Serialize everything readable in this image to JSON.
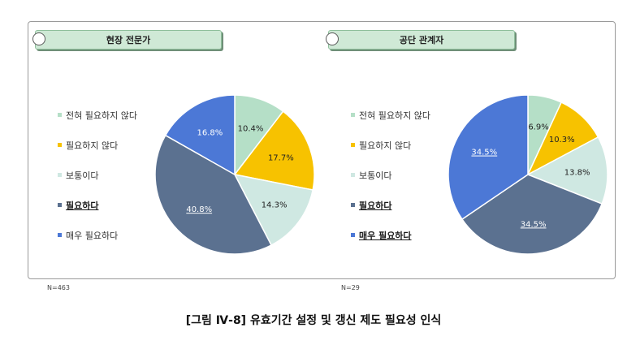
{
  "caption": "[그림 Ⅳ-8] 유효기간 설정 및 갱신 제도 필요성 인식",
  "colors": {
    "not_at_all": "#b5dfc7",
    "not_needed": "#f7c200",
    "neutral": "#cfe8e2",
    "needed": "#5b7190",
    "very_needed": "#4c78d6"
  },
  "chart_data": [
    {
      "type": "pie",
      "title": "현장 전문가",
      "n_label": "N=463",
      "slices": [
        {
          "label": "전혀 필요하지 않다",
          "value": 10.4,
          "value_label": "10.4%",
          "color": "#b5dfc7",
          "emph": false
        },
        {
          "label": "필요하지 않다",
          "value": 17.7,
          "value_label": "17.7%",
          "color": "#f7c200",
          "emph": false
        },
        {
          "label": "보통이다",
          "value": 14.3,
          "value_label": "14.3%",
          "color": "#cfe8e2",
          "emph": false
        },
        {
          "label": "필요하다",
          "value": 40.8,
          "value_label": "40.8%",
          "color": "#5b7190",
          "emph": true
        },
        {
          "label": "매우 필요하다",
          "value": 16.8,
          "value_label": "16.8%",
          "color": "#4c78d6",
          "emph": false
        }
      ],
      "legend_placement": "left"
    },
    {
      "type": "pie",
      "title": "공단 관계자",
      "n_label": "N=29",
      "slices": [
        {
          "label": "전혀 필요하지 않다",
          "value": 6.9,
          "value_label": "6.9%",
          "color": "#b5dfc7",
          "emph": false
        },
        {
          "label": "필요하지 않다",
          "value": 10.3,
          "value_label": "10.3%",
          "color": "#f7c200",
          "emph": false
        },
        {
          "label": "보통이다",
          "value": 13.8,
          "value_label": "13.8%",
          "color": "#cfe8e2",
          "emph": false
        },
        {
          "label": "필요하다",
          "value": 34.5,
          "value_label": "34.5%",
          "color": "#5b7190",
          "emph": true
        },
        {
          "label": "매우 필요하다",
          "value": 34.5,
          "value_label": "34.5%",
          "color": "#4c78d6",
          "emph": true
        }
      ],
      "legend_placement": "left"
    }
  ]
}
